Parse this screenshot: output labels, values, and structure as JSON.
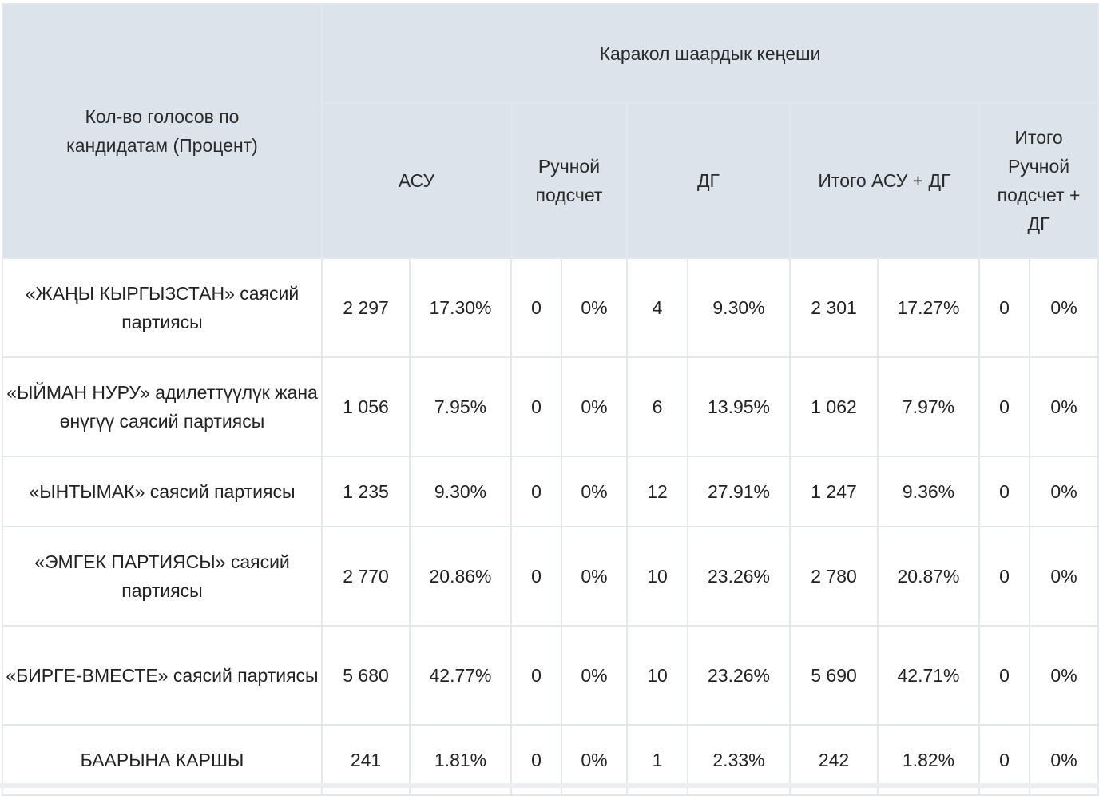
{
  "table": {
    "corner_header": "Кол-во голосов по кандидатам (Процент)",
    "group_header": "Каракол шаардык кеңеши",
    "sub_headers": [
      "АСУ",
      "Ручной подсчет",
      "ДГ",
      "Итого АСУ + ДГ",
      "Итого Ручной подсчет + ДГ"
    ],
    "rows": [
      {
        "party": "«ЖАҢЫ КЫРГЫЗСТАН» саясий партиясы",
        "cells": [
          "2 297",
          "17.30%",
          "0",
          "0%",
          "4",
          "9.30%",
          "2 301",
          "17.27%",
          "0",
          "0%"
        ]
      },
      {
        "party": "«ЫЙМАН НУРУ» адилеттүүлүк жана өнүгүү саясий партиясы",
        "cells": [
          "1 056",
          "7.95%",
          "0",
          "0%",
          "6",
          "13.95%",
          "1 062",
          "7.97%",
          "0",
          "0%"
        ]
      },
      {
        "party": "«ЫНТЫМАК» саясий партиясы",
        "cells": [
          "1 235",
          "9.30%",
          "0",
          "0%",
          "12",
          "27.91%",
          "1 247",
          "9.36%",
          "0",
          "0%"
        ]
      },
      {
        "party": "«ЭМГЕК ПАРТИЯСЫ» саясий партиясы",
        "cells": [
          "2 770",
          "20.86%",
          "0",
          "0%",
          "10",
          "23.26%",
          "2 780",
          "20.87%",
          "0",
          "0%"
        ]
      },
      {
        "party": "«БИРГЕ-ВМЕСТЕ» саясий партиясы",
        "cells": [
          "5 680",
          "42.77%",
          "0",
          "0%",
          "10",
          "23.26%",
          "5 690",
          "42.71%",
          "0",
          "0%"
        ]
      },
      {
        "party": "БААРЫНА КАРШЫ",
        "cells": [
          "241",
          "1.81%",
          "0",
          "0%",
          "1",
          "2.33%",
          "242",
          "1.82%",
          "0",
          "0%"
        ]
      }
    ]
  },
  "colors": {
    "header_bg": "#dde3eb",
    "border": "#e4e7ec",
    "text": "#222222"
  }
}
